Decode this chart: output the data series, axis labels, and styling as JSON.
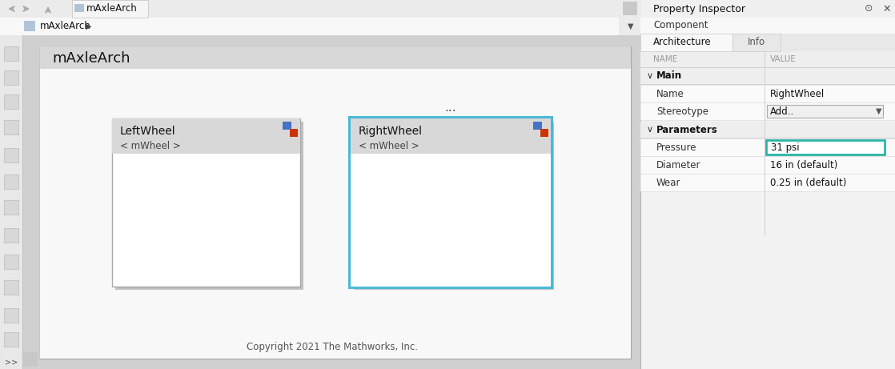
{
  "title": "mAxleArch",
  "fig_bg": "#d4d4d4",
  "toolbar_bg": "#ebebeb",
  "breadcrumb_bg": "#f8f8f8",
  "left_toolbar_bg": "#e8e8e8",
  "canvas_outer_bg": "#d8d8d8",
  "diagram_header_bg": "#d8d8d8",
  "diagram_canvas_bg": "#f8f8f8",
  "block_header_bg": "#d8d8d8",
  "block_body_bg": "#ffffff",
  "block_shadow_color": "#c0c0c0",
  "selected_border_color": "#4ab8d8",
  "property_panel_bg": "#f2f2f2",
  "property_header_bg": "#f0f0f0",
  "property_row_bg": "#fafafa",
  "property_section_bg": "#eeeeee",
  "tab_active_bg": "#f8f8f8",
  "tab_inactive_bg": "#e8e8e8",
  "highlight_border_color": "#2ab5a5",
  "divider_color": "#d0d0d0",
  "row_divider_color": "#e0e0e0",
  "property_panel_title": "Property Inspector",
  "component_tab": "Component",
  "arch_tab": "Architecture",
  "info_tab": "Info",
  "table_headers": [
    "NAME",
    "VALUE"
  ],
  "main_section": "Main",
  "main_rows": [
    {
      "name": "Name",
      "value": "RightWheel",
      "dropdown": false
    },
    {
      "name": "Stereotype",
      "value": "Add..",
      "dropdown": true
    }
  ],
  "params_section": "Parameters",
  "param_rows": [
    {
      "name": "Pressure",
      "value": "31 psi",
      "highlighted": true
    },
    {
      "name": "Diameter",
      "value": "16 in (default)",
      "highlighted": false
    },
    {
      "name": "Wear",
      "value": "0.25 in (default)",
      "highlighted": false
    }
  ],
  "left_wheel_title": "LeftWheel",
  "left_wheel_subtitle": "< mWheel >",
  "right_wheel_title": "RightWheel",
  "right_wheel_subtitle": "< mWheel >",
  "copyright_text": "Copyright 2021 The Mathworks, Inc.",
  "dots_text": "...",
  "breadcrumb_text": "mAxleArch",
  "tab_title": "mAxleArch",
  "icon_color_blue": "#4472c4",
  "icon_color_red": "#cc3300",
  "text_dark": "#111111",
  "text_mid": "#444444",
  "text_light": "#888888",
  "text_muted": "#555555"
}
